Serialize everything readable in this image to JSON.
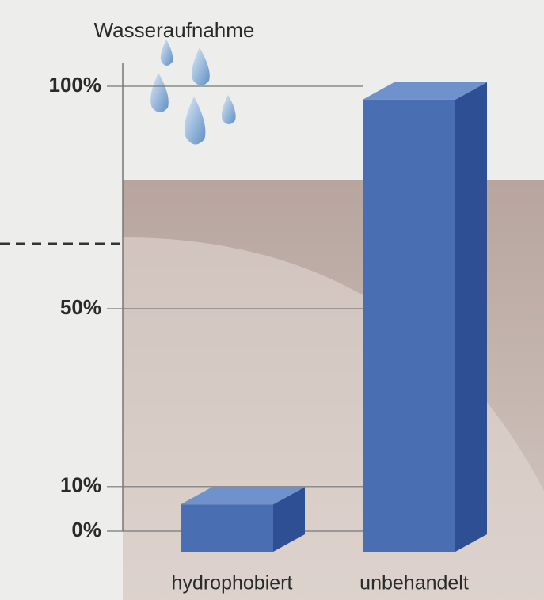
{
  "chart_data": {
    "type": "bar",
    "title": "Wasseraufnahme",
    "categories": [
      "hydrophobiert",
      "unbehandelt"
    ],
    "values": [
      6,
      97
    ],
    "color": "#4a6eb2",
    "ylim": [
      0,
      100
    ],
    "yticks": [
      {
        "value": 0,
        "label": "0%"
      },
      {
        "value": 10,
        "label": "10%"
      },
      {
        "value": 50,
        "label": "50%"
      },
      {
        "value": 100,
        "label": "100%"
      }
    ],
    "grid": true
  }
}
